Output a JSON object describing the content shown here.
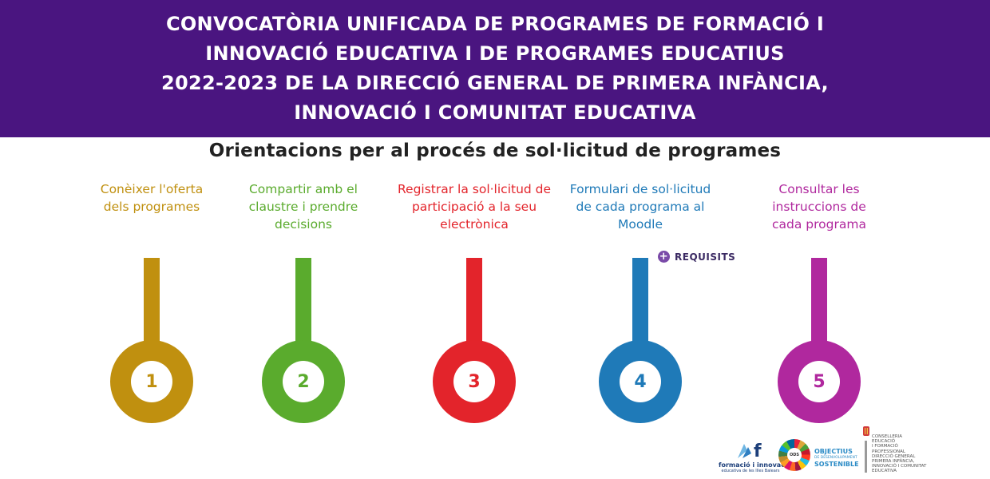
{
  "banner": {
    "lines": [
      "CONVOCATÒRIA UNIFICADA DE PROGRAMES DE FORMACIÓ I",
      "INNOVACIÓ EDUCATIVA I DE PROGRAMES EDUCATIUS",
      "2022-2023 DE LA DIRECCIÓ GENERAL DE PRIMERA INFÀNCIA,",
      "INNOVACIÓ I COMUNITAT EDUCATIVA"
    ],
    "color": "#4a1580"
  },
  "subtitle": "Orientacions per al procés de sol·licitud de programes",
  "steps": [
    {
      "number": "1",
      "color": "#c0900f",
      "lines": [
        "Conèixer l'oferta",
        "dels programes"
      ]
    },
    {
      "number": "2",
      "color": "#5aab2d",
      "lines": [
        "Compartir amb el",
        "claustre i prendre",
        "decisions"
      ]
    },
    {
      "number": "3",
      "color": "#e3242b",
      "lines": [
        "Registrar la sol·licitud de",
        "participació a la seu",
        "electrònica"
      ]
    },
    {
      "number": "4",
      "color": "#1f7ab8",
      "lines": [
        "Formulari de sol·licitud",
        "de cada programa al",
        "Moodle"
      ]
    },
    {
      "number": "5",
      "color": "#b0289e",
      "lines": [
        "Consultar les",
        "instruccions de",
        "cada programa"
      ]
    }
  ],
  "requisits": {
    "icon": "plus-circle-icon",
    "label": "REQUISITS"
  },
  "logos": {
    "formacio": {
      "line1": "formació i innovació",
      "line2": "educativa de les Illes Balears"
    },
    "ods": {
      "center": "ODS",
      "line1": "OBJECTIUS",
      "line2": "DE DESENVOLUPAMENT",
      "line3": "SOSTENIBLE"
    },
    "govern": {
      "lines": [
        "CONSELLERIA",
        "EDUCACIÓ",
        "I FORMACIÓ",
        "PROFESSIONAL",
        "DIRECCIÓ GENERAL",
        "PRIMERA INFÀNCIA,",
        "INNOVACIÓ I COMUNITAT",
        "EDUCATIVA"
      ]
    }
  }
}
